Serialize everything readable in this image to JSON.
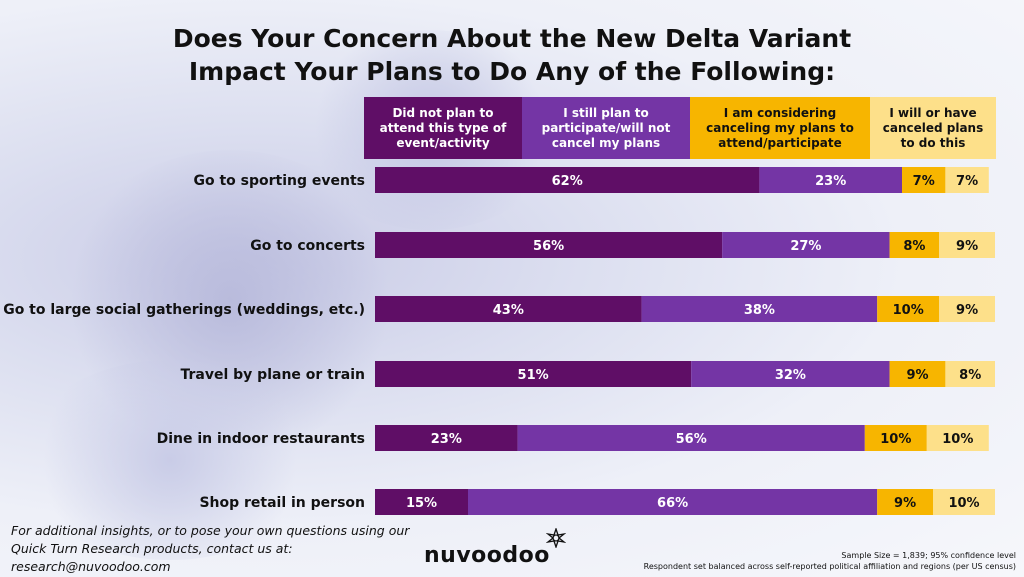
{
  "title_line1": "Does Your Concern About the New Delta Variant",
  "title_line2": "Impact Your Plans to Do Any of the Following:",
  "colors": {
    "s1": "#5f0e66",
    "s2": "#7435a5",
    "s3": "#f7b500",
    "s4": "#fde08a"
  },
  "chart_data": {
    "type": "bar",
    "orientation": "horizontal",
    "stacked": true,
    "xlim": [
      0,
      100
    ],
    "categories": [
      "Go to sporting events",
      "Go to concerts",
      "Go to large social gatherings (weddings, etc.)",
      "Travel by plane or train",
      "Dine in indoor restaurants",
      "Shop retail in person"
    ],
    "series": [
      {
        "name": "Did not plan to attend this type of event/activity",
        "values": [
          62,
          56,
          43,
          51,
          23,
          15
        ]
      },
      {
        "name": "I still plan to participate/will not cancel my plans",
        "values": [
          23,
          27,
          38,
          32,
          56,
          66
        ]
      },
      {
        "name": "I am considering canceling my plans to attend/participate",
        "values": [
          7,
          8,
          10,
          9,
          10,
          9
        ]
      },
      {
        "name": "I will or have canceled plans to do this",
        "values": [
          7,
          9,
          9,
          8,
          10,
          10
        ]
      }
    ],
    "data_labels": [
      [
        "62%",
        "23%",
        "7%",
        "7%"
      ],
      [
        "56%",
        "27%",
        "8%",
        "9%"
      ],
      [
        "43%",
        "38%",
        "10%",
        "9%"
      ],
      [
        "51%",
        "32%",
        "9%",
        "8%"
      ],
      [
        "23%",
        "56%",
        "10%",
        "10%"
      ],
      [
        "15%",
        "66%",
        "9%",
        "10%"
      ]
    ],
    "legend_position": "top"
  },
  "footer": {
    "left_line1": "For additional insights, or to pose your own questions using our",
    "left_line2": "Quick Turn Research products, contact us at:",
    "left_line3": "research@nuvoodoo.com",
    "logo_text": "nuvoodoo",
    "right_line1": "Sample Size = 1,839; 95% confidence level",
    "right_line2": "Respondent set balanced across self-reported political affiliation and regions (per US census)"
  }
}
